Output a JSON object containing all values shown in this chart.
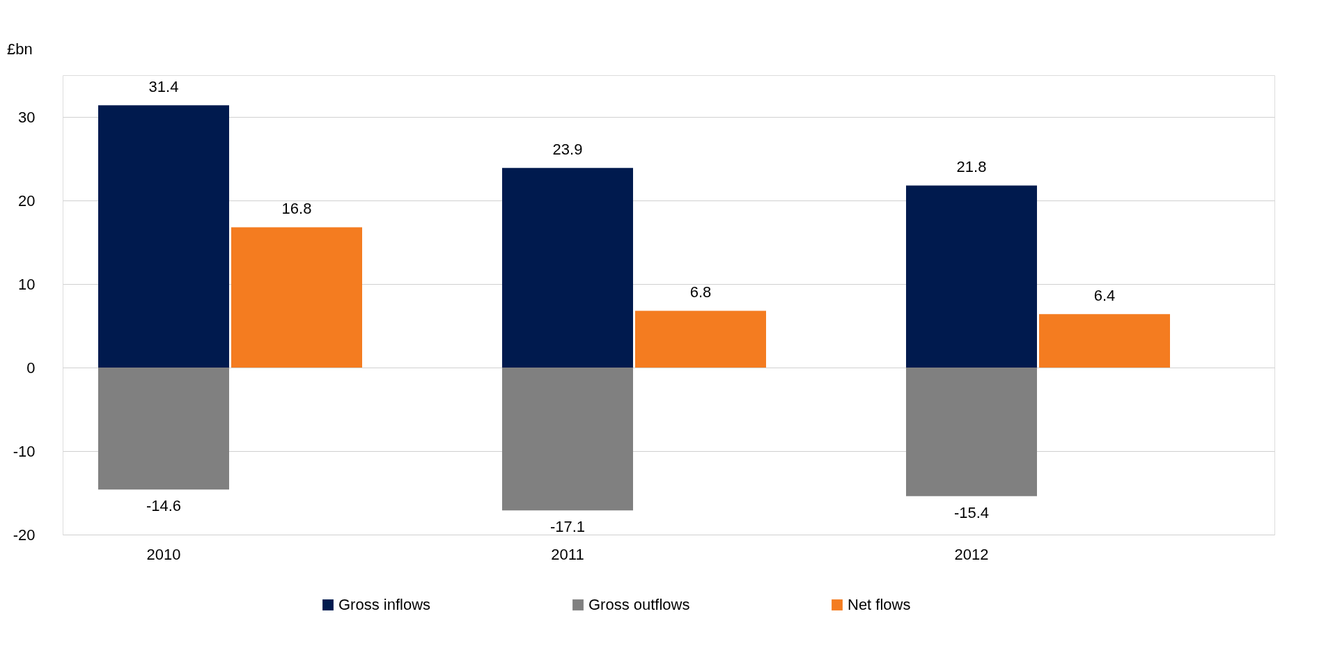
{
  "chart_data": {
    "type": "bar",
    "ylabel": "£bn",
    "categories": [
      "2010",
      null,
      "2011",
      null,
      "2012",
      null
    ],
    "series": [
      {
        "name": "Gross inflows",
        "color": "#001a4e",
        "values": [
          31.4,
          null,
          23.9,
          null,
          21.8,
          null
        ]
      },
      {
        "name": "Gross outflows",
        "color": "#808080",
        "values": [
          -14.6,
          null,
          -17.1,
          null,
          -15.4,
          null
        ]
      },
      {
        "name": "Net flows",
        "color": "#f47c20",
        "values": [
          null,
          16.8,
          null,
          6.8,
          null,
          6.4
        ]
      }
    ],
    "stacked": true,
    "ylim": [
      -20,
      35
    ],
    "yticks": [
      -20,
      -10,
      0,
      10,
      20,
      30
    ],
    "grid": "y",
    "legend": "bottom",
    "data_labels": true
  }
}
